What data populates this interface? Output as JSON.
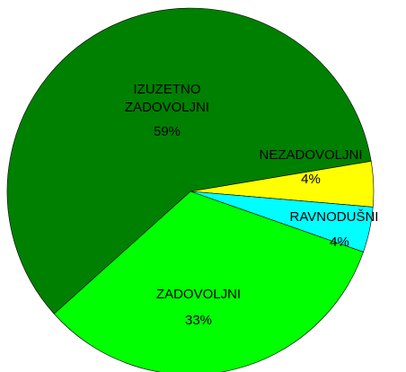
{
  "chart_data": {
    "type": "pie",
    "categories": [
      "NEZADOVOLJNI",
      "RAVNODUŠNI",
      "ZADOVOLJNI",
      "IZUZETNO ZADOVOLJNI"
    ],
    "values": [
      4,
      4,
      33,
      59
    ],
    "value_labels": [
      "4%",
      "4%",
      "33%",
      "59%"
    ],
    "colors": [
      "#ffff00",
      "#00ffff",
      "#00ff00",
      "#008000"
    ]
  }
}
